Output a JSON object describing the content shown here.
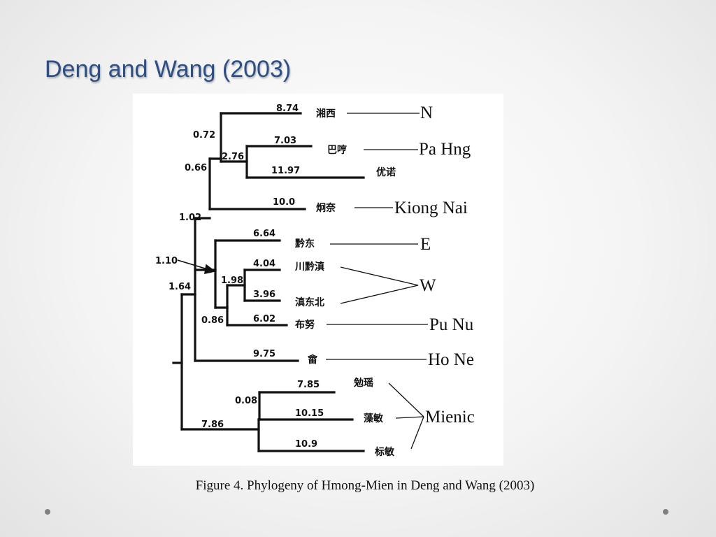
{
  "slide": {
    "title": "Deng and Wang (2003)",
    "caption": "Figure 4. Phylogeny of Hmong-Mien in Deng and Wang (2003)"
  },
  "tree": {
    "leaves": [
      {
        "id": "xiangxi",
        "name": "湘西",
        "branch_length": "8.74",
        "group": "N"
      },
      {
        "id": "baheng",
        "name": "巴哼",
        "branch_length": "7.03",
        "group": "Pa Hng"
      },
      {
        "id": "younuo",
        "name": "优诺",
        "branch_length": "11.97",
        "group": "Pa Hng"
      },
      {
        "id": "jiongnai",
        "name": "炯奈",
        "branch_length": "10.0",
        "group": "Kiong Nai"
      },
      {
        "id": "qiandong",
        "name": "黔东",
        "branch_length": "6.64",
        "group": "E"
      },
      {
        "id": "chuanqiandian",
        "name": "川黔滇",
        "branch_length": "4.04",
        "group": "W"
      },
      {
        "id": "diandongbei",
        "name": "滇东北",
        "branch_length": "3.96",
        "group": "W"
      },
      {
        "id": "bunu",
        "name": "布努",
        "branch_length": "6.02",
        "group": "Pu Nu"
      },
      {
        "id": "she",
        "name": "畲",
        "branch_length": "9.75",
        "group": "Ho Ne"
      },
      {
        "id": "mianyao",
        "name": "勉瑶",
        "branch_length": "7.85",
        "group": "Mienic"
      },
      {
        "id": "zaomin",
        "name": "藻敏",
        "branch_length": "10.15",
        "group": "Mienic"
      },
      {
        "id": "biaomin",
        "name": "标敏",
        "branch_length": "10.9",
        "group": "Mienic"
      }
    ],
    "internal_lengths": [
      "0.72",
      "2.76",
      "0.66",
      "1.02",
      "1.10",
      "1.98",
      "0.86",
      "1.64",
      "0.08",
      "7.86"
    ],
    "groups": [
      "N",
      "Pa Hng",
      "Kiong Nai",
      "E",
      "W",
      "Pu Nu",
      "Ho Ne",
      "Mienic"
    ]
  }
}
